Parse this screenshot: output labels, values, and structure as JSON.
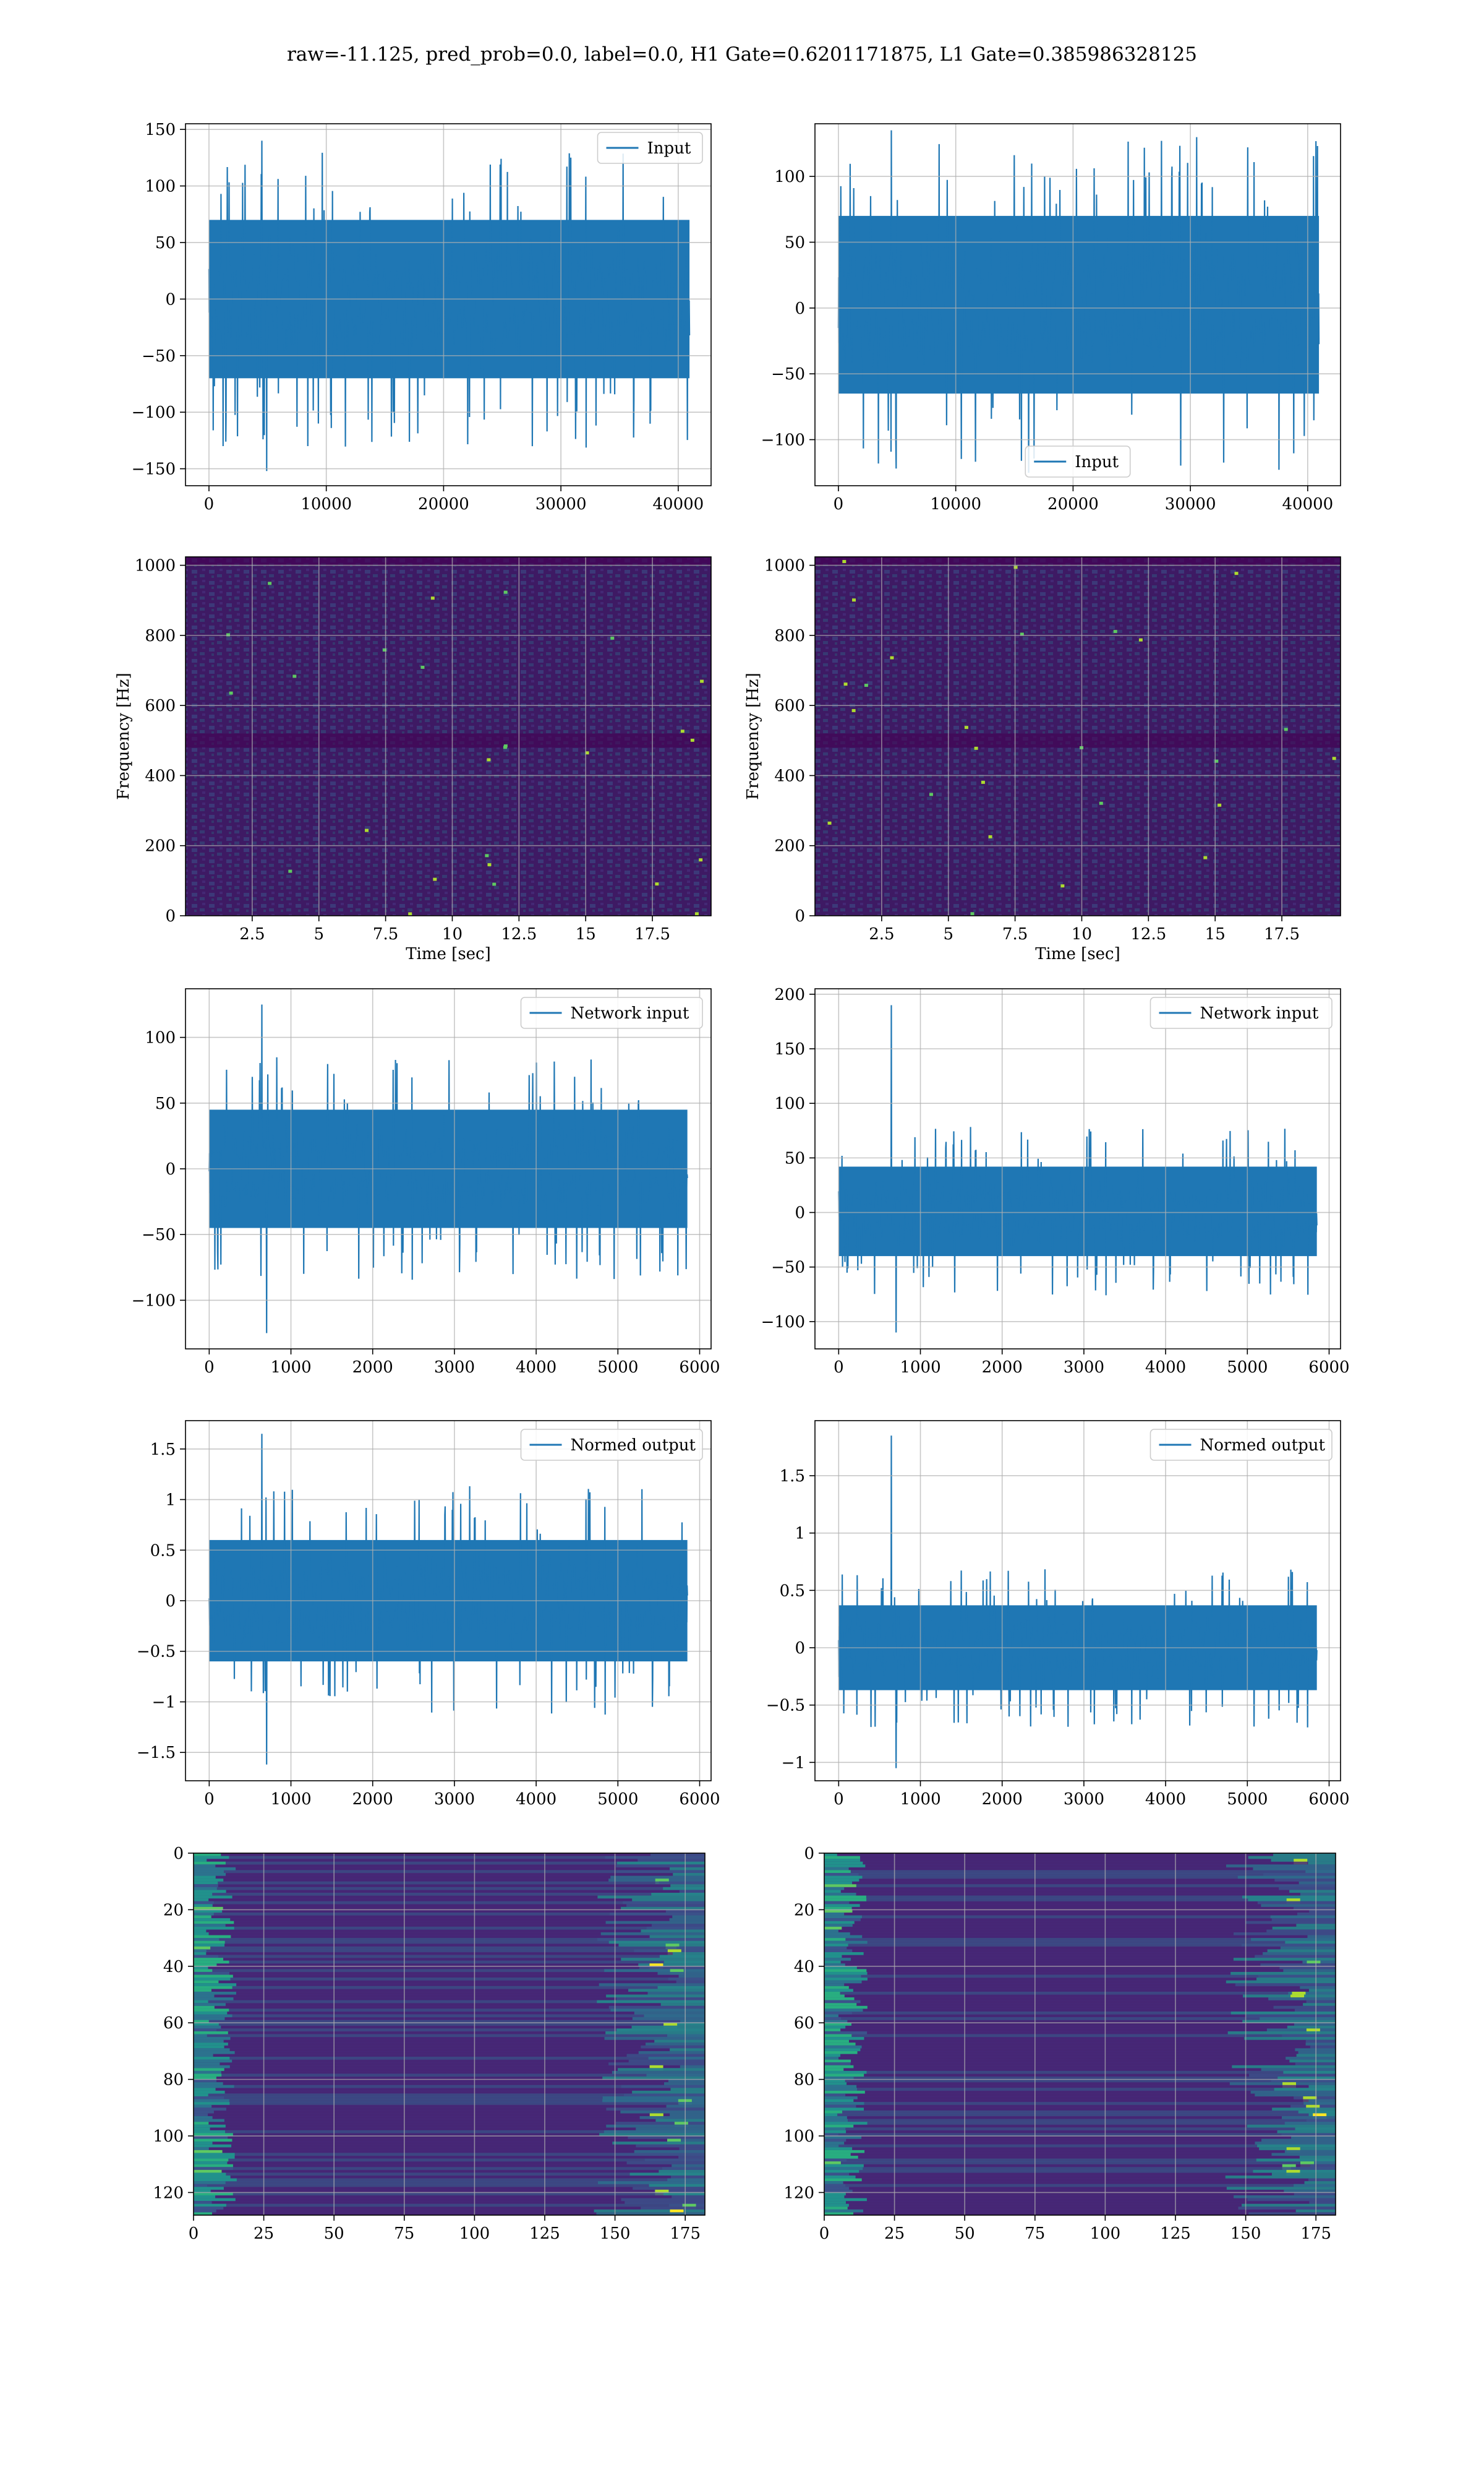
{
  "suptitle": "raw=-11.125, pred_prob=0.0, label=0.0, H1 Gate=0.6201171875, L1 Gate=0.385986328125",
  "colors": {
    "line": "#1f77b4",
    "grid": "#b0b0b0",
    "viridis": [
      "#440154",
      "#472d7b",
      "#3b528b",
      "#2c728e",
      "#21918c",
      "#28ae80",
      "#5ec962",
      "#addc30",
      "#fde725"
    ]
  },
  "chart_data": [
    {
      "id": "h1-input",
      "type": "line",
      "legend": "Input",
      "legend_loc": "upper right",
      "xlim": [
        -2000,
        42800
      ],
      "ylim": [
        -165,
        155
      ],
      "xticks": [
        0,
        10000,
        20000,
        30000,
        40000
      ],
      "yticks": [
        -150,
        -100,
        -50,
        0,
        50,
        100,
        150
      ],
      "x_range": [
        0,
        40960
      ],
      "band": [
        -70,
        70
      ],
      "spike_up": 140,
      "spike_down": -152
    },
    {
      "id": "l1-input",
      "type": "line",
      "legend": "Input",
      "legend_loc": "lower center",
      "xlim": [
        -2000,
        42800
      ],
      "ylim": [
        -135,
        140
      ],
      "xticks": [
        0,
        10000,
        20000,
        30000,
        40000
      ],
      "yticks": [
        -100,
        -50,
        0,
        50,
        100
      ],
      "x_range": [
        0,
        40960
      ],
      "band": [
        -65,
        70
      ],
      "spike_up": 135,
      "spike_down": -122
    },
    {
      "id": "h1-spectrogram",
      "type": "heatmap",
      "xlabel": "Time [sec]",
      "ylabel": "Frequency [Hz]",
      "xlim": [
        0,
        19.7
      ],
      "ylim": [
        0,
        1024
      ],
      "xticks": [
        2.5,
        5.0,
        7.5,
        10.0,
        12.5,
        15.0,
        17.5
      ],
      "yticks": [
        0,
        200,
        400,
        600,
        800,
        1000
      ]
    },
    {
      "id": "l1-spectrogram",
      "type": "heatmap",
      "xlabel": "Time [sec]",
      "ylabel": "Frequency [Hz]",
      "xlim": [
        0,
        19.7
      ],
      "ylim": [
        0,
        1024
      ],
      "xticks": [
        2.5,
        5.0,
        7.5,
        10.0,
        12.5,
        15.0,
        17.5
      ],
      "yticks": [
        0,
        200,
        400,
        600,
        800,
        1000
      ]
    },
    {
      "id": "h1-network-input",
      "type": "line",
      "legend": "Network input",
      "legend_loc": "upper right",
      "xlim": [
        -290,
        6140
      ],
      "ylim": [
        -137,
        137
      ],
      "xticks": [
        0,
        1000,
        2000,
        3000,
        4000,
        5000,
        6000
      ],
      "yticks": [
        -100,
        -50,
        0,
        50,
        100
      ],
      "x_range": [
        0,
        5850
      ],
      "band": [
        -45,
        45
      ],
      "spike_up": 125,
      "spike_down": -125
    },
    {
      "id": "l1-network-input",
      "type": "line",
      "legend": "Network input",
      "legend_loc": "upper right",
      "xlim": [
        -290,
        6140
      ],
      "ylim": [
        -125,
        205
      ],
      "xticks": [
        0,
        1000,
        2000,
        3000,
        4000,
        5000,
        6000
      ],
      "yticks": [
        -100,
        -50,
        0,
        50,
        100,
        150,
        200
      ],
      "x_range": [
        0,
        5850
      ],
      "band": [
        -40,
        42
      ],
      "spike_up": 190,
      "spike_down": -110
    },
    {
      "id": "h1-normed-output",
      "type": "line",
      "legend": "Normed output",
      "legend_loc": "upper right",
      "xlim": [
        -290,
        6140
      ],
      "ylim": [
        -1.78,
        1.78
      ],
      "xticks": [
        0,
        1000,
        2000,
        3000,
        4000,
        5000,
        6000
      ],
      "yticks": [
        -1.5,
        -1.0,
        -0.5,
        0.0,
        0.5,
        1.0,
        1.5
      ],
      "x_range": [
        0,
        5850
      ],
      "band": [
        -0.6,
        0.6
      ],
      "spike_up": 1.65,
      "spike_down": -1.62
    },
    {
      "id": "l1-normed-output",
      "type": "line",
      "legend": "Normed output",
      "legend_loc": "upper right",
      "xlim": [
        -290,
        6140
      ],
      "ylim": [
        -1.16,
        1.98
      ],
      "xticks": [
        0,
        1000,
        2000,
        3000,
        4000,
        5000,
        6000
      ],
      "yticks": [
        -1.0,
        -0.5,
        0.0,
        0.5,
        1.0,
        1.5
      ],
      "x_range": [
        0,
        5850
      ],
      "band": [
        -0.37,
        0.37
      ],
      "spike_up": 1.85,
      "spike_down": -1.05
    },
    {
      "id": "h1-features",
      "type": "heatmap",
      "xlim": [
        0,
        182
      ],
      "ylim": [
        128,
        0
      ],
      "xticks": [
        0,
        25,
        50,
        75,
        100,
        125,
        150,
        175
      ],
      "yticks": [
        0,
        20,
        40,
        60,
        80,
        100,
        120
      ]
    },
    {
      "id": "l1-features",
      "type": "heatmap",
      "xlim": [
        0,
        182
      ],
      "ylim": [
        128,
        0
      ],
      "xticks": [
        0,
        25,
        50,
        75,
        100,
        125,
        150,
        175
      ],
      "yticks": [
        0,
        20,
        40,
        60,
        80,
        100,
        120
      ]
    }
  ]
}
